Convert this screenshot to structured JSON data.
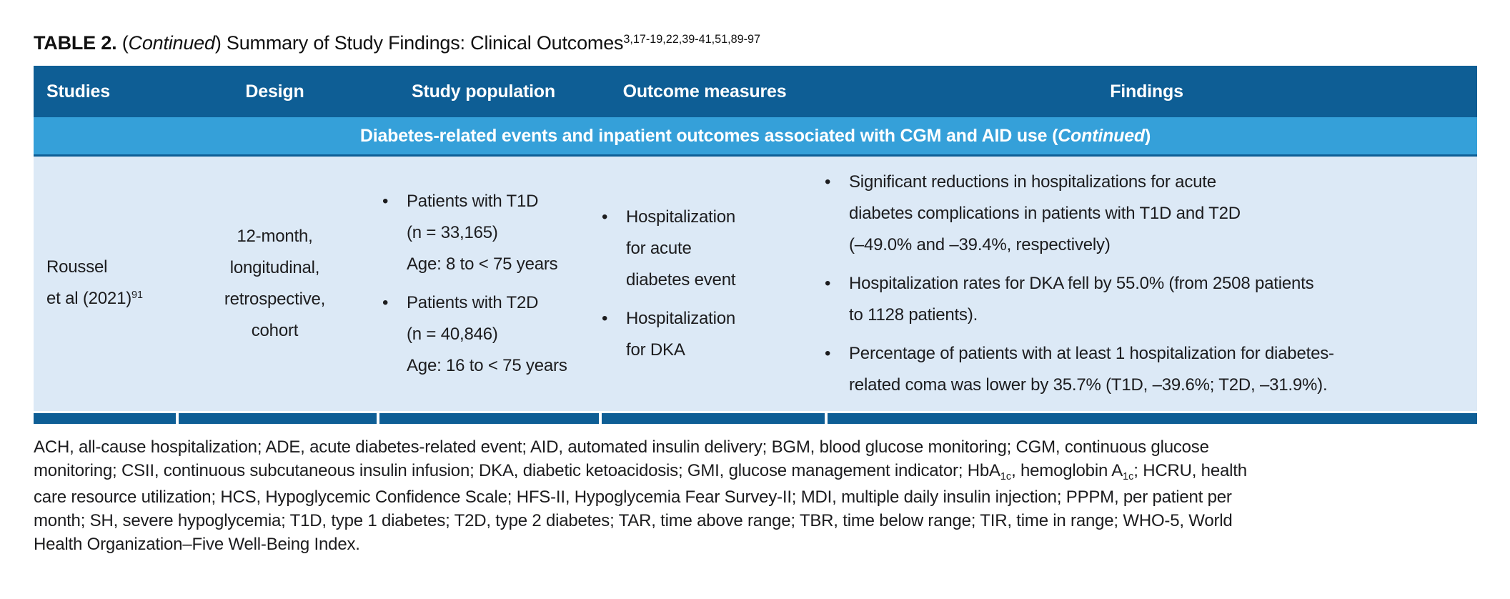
{
  "colors": {
    "header_bg": "#0E5E95",
    "banner_bg": "#35A0D9",
    "row_bg": "#DCE9F6",
    "rule_bg": "#0E5E95",
    "header_text": "#FFFFFF",
    "body_text": "#1C1C1E"
  },
  "bullet": "•",
  "title": {
    "segments": [
      {
        "t": "TABLE 2.",
        "bold": true
      },
      {
        "t": " ("
      },
      {
        "t": "Continued",
        "italic": true
      },
      {
        "t": ") Summary of Study Findings: Clinical Outcomes"
      },
      {
        "t": "3,17-19,22,39-41,51,89-97",
        "sup": true
      }
    ]
  },
  "table": {
    "columns": [
      {
        "label": "Studies"
      },
      {
        "label": "Design"
      },
      {
        "label": "Study population"
      },
      {
        "label": "Outcome measures"
      },
      {
        "label": "Findings"
      }
    ],
    "section_banner": {
      "segments": [
        {
          "t": "Diabetes-related events and inpatient outcomes associated with CGM and AID use ("
        },
        {
          "t": "Continued",
          "italic": true
        },
        {
          "t": ")"
        }
      ]
    },
    "row": {
      "studies_lines": [
        [
          {
            "t": "Roussel"
          }
        ],
        [
          {
            "t": "et al (2021)"
          },
          {
            "t": "91",
            "sup": true
          }
        ]
      ],
      "design_lines": [
        "12-month,",
        "longitudinal,",
        "retrospective,",
        "cohort"
      ],
      "study_population_items": [
        [
          "Patients with T1D",
          "(n = 33,165)",
          "Age: 8 to < 75 years"
        ],
        [
          "Patients with T2D",
          "(n = 40,846)",
          "Age: 16 to < 75 years"
        ]
      ],
      "outcome_measures_items": [
        [
          "Hospitalization",
          "for acute",
          "diabetes event"
        ],
        [
          "Hospitalization",
          "for DKA"
        ]
      ],
      "findings_items": [
        [
          "Significant reductions in hospitalizations for acute",
          "diabetes complications in patients with T1D and T2D",
          "(–49.0% and –39.4%, respectively)"
        ],
        [
          "Hospitalization rates for DKA fell by 55.0% (from 2508 patients",
          "to 1128 patients)."
        ],
        [
          "Percentage of patients with at least 1 hospitalization for diabetes-",
          "related coma was lower by 35.7% (T1D, –39.6%; T2D, –31.9%)."
        ]
      ]
    }
  },
  "footnote": {
    "lines": [
      [
        {
          "t": "ACH, all-cause hospitalization; ADE, acute diabetes-related event; AID, automated insulin delivery; BGM, blood glucose monitoring; CGM, continuous glucose"
        }
      ],
      [
        {
          "t": "monitoring; CSII, continuous subcutaneous insulin infusion; DKA, diabetic ketoacidosis; GMI, glucose management indicator; HbA"
        },
        {
          "t": "1c",
          "sub": true
        },
        {
          "t": ", hemoglobin A"
        },
        {
          "t": "1c",
          "sub": true
        },
        {
          "t": "; HCRU, health"
        }
      ],
      [
        {
          "t": "care resource utilization; HCS, Hypoglycemic Confidence Scale; HFS-II, Hypoglycemia Fear Survey-II; MDI, multiple daily insulin injection; PPPM, per patient per"
        }
      ],
      [
        {
          "t": "month; SH, severe hypoglycemia; T1D, type 1 diabetes; T2D, type 2 diabetes; TAR, time above range; TBR, time below range; TIR, time in range; WHO-5, World"
        }
      ],
      [
        {
          "t": "Health Organization–Five Well-Being Index."
        }
      ]
    ]
  }
}
